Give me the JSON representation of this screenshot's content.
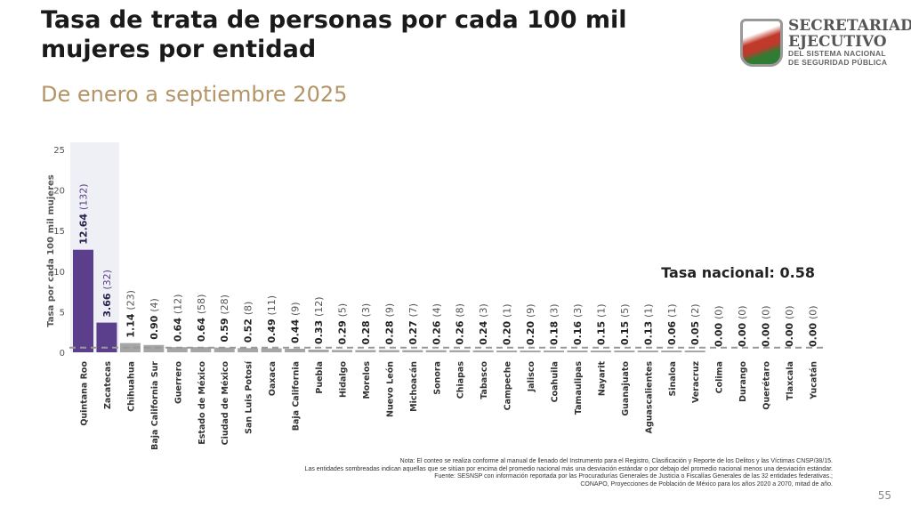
{
  "header": {
    "title": "Tasa de trata de personas por cada 100 mil mujeres por entidad",
    "subtitle": "De enero a septiembre 2025"
  },
  "logo": {
    "line1": "SECRETARIADO",
    "line2": "EJECUTIVO",
    "line3": "DEL SISTEMA NACIONAL",
    "line4": "DE SEGURIDAD PÚBLICA"
  },
  "chart_data": {
    "type": "bar",
    "ylabel": "Tasa por cada 100 mil mujeres",
    "ylim": [
      0,
      25
    ],
    "yticks": [
      "0",
      "5",
      "10",
      "15",
      "20",
      "25"
    ],
    "reference_line": {
      "label": "Tasa nacional: 0.58",
      "value": 0.58
    },
    "categories": [
      "Quintana Roo",
      "Zacatecas",
      "Chihuahua",
      "Baja California Sur",
      "Guerrero",
      "Estado de México",
      "Ciudad de México",
      "San Luis Potosí",
      "Oaxaca",
      "Baja California",
      "Puebla",
      "Hidalgo",
      "Morelos",
      "Nuevo León",
      "Michoacán",
      "Sonora",
      "Chiapas",
      "Tabasco",
      "Campeche",
      "Jalisco",
      "Coahuila",
      "Tamaulipas",
      "Nayarit",
      "Guanajuato",
      "Aguascalientes",
      "Sinaloa",
      "Veracruz",
      "Colima",
      "Durango",
      "Querétaro",
      "Tlaxcala",
      "Yucatán"
    ],
    "values": [
      12.64,
      3.66,
      1.14,
      0.9,
      0.64,
      0.64,
      0.59,
      0.52,
      0.49,
      0.44,
      0.33,
      0.29,
      0.28,
      0.28,
      0.27,
      0.26,
      0.26,
      0.24,
      0.2,
      0.2,
      0.18,
      0.16,
      0.15,
      0.15,
      0.13,
      0.06,
      0.05,
      0.0,
      0.0,
      0.0,
      0.0,
      0.0
    ],
    "value_labels": [
      "12.64",
      "3.66",
      "1.14",
      "0.90",
      "0.64",
      "0.64",
      "0.59",
      "0.52",
      "0.49",
      "0.44",
      "0.33",
      "0.29",
      "0.28",
      "0.28",
      "0.27",
      "0.26",
      "0.26",
      "0.24",
      "0.20",
      "0.20",
      "0.18",
      "0.16",
      "0.15",
      "0.15",
      "0.13",
      "0.06",
      "0.05",
      "0.00",
      "0.00",
      "0.00",
      "0.00",
      "0.00"
    ],
    "counts": [
      "(132)",
      "(32)",
      "(23)",
      "(4)",
      "(12)",
      "(58)",
      "(28)",
      "(8)",
      "(11)",
      "(9)",
      "(12)",
      "(5)",
      "(3)",
      "(9)",
      "(7)",
      "(4)",
      "(8)",
      "(3)",
      "(1)",
      "(9)",
      "(3)",
      "(3)",
      "(1)",
      "(5)",
      "(1)",
      "(1)",
      "(2)",
      "(0)",
      "(0)",
      "(0)",
      "(0)",
      "(0)"
    ],
    "highlighted": [
      "Quintana Roo",
      "Zacatecas"
    ],
    "colors": {
      "highlight": "#5b3f8c",
      "normal": "#a6a6a6",
      "shade": "#eef0f5",
      "ref": "#999999"
    }
  },
  "notes": [
    "Nota: El conteo se realiza conforme al manual de llenado del Instrumento para el Registro, Clasificación y Reporte de los Delitos y las Víctimas CNSP/38/15.",
    "Las entidades sombreadas indican aquellas que se sitúan por encima del promedio nacional más una desviación estándar o por debajo del promedio nacional menos una desviación estándar.",
    "Fuente: SESNSP con información reportada por las Procuradurías Generales de Justicia o Fiscalías Generales de las 32 entidades federativas.;",
    "CONAPO, Proyecciones de Población de México para los años 2020 a 2070, mitad de año."
  ],
  "page_number": "55"
}
